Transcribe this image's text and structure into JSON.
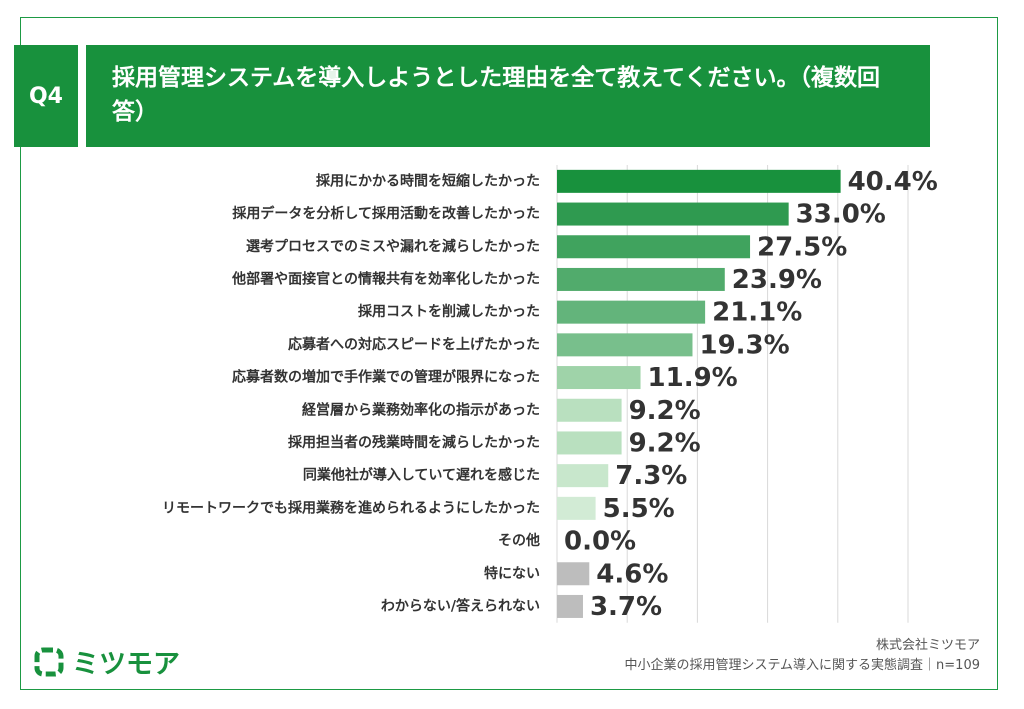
{
  "header": {
    "question": "Q4",
    "title": "採用管理システムを導入しようとした理由を全て教えてください。（複数回答）"
  },
  "chart_data": {
    "type": "barh",
    "categories": [
      "採用にかかる時間を短縮したかった",
      "採用データを分析して採用活動を改善したかった",
      "選考プロセスでのミスや漏れを減らしたかった",
      "他部署や面接官との情報共有を効率化したかった",
      "採用コストを削減したかった",
      "応募者への対応スピードを上げたかった",
      "応募者数の増加で手作業での管理が限界になった",
      "経営層から業務効率化の指示があった",
      "採用担当者の残業時間を減らしたかった",
      "同業他社が導入していて遅れを感じた",
      "リモートワークでも採用業務を進められるようにしたかった",
      "その他",
      "特にない",
      "わからない/答えられない"
    ],
    "values": [
      40.4,
      33.0,
      27.5,
      23.9,
      21.1,
      19.3,
      11.9,
      9.2,
      9.2,
      7.3,
      5.5,
      0.0,
      4.6,
      3.7
    ],
    "value_labels": [
      "40.4%",
      "33.0%",
      "27.5%",
      "23.9%",
      "21.1%",
      "19.3%",
      "11.9%",
      "9.2%",
      "9.2%",
      "7.3%",
      "5.5%",
      "0.0%",
      "4.6%",
      "3.7%"
    ],
    "colors": [
      "#18913d",
      "#2f9a50",
      "#40a35e",
      "#51ab6c",
      "#63b47b",
      "#78bf8c",
      "#9fd3a9",
      "#b9e0bf",
      "#b9e0bf",
      "#c8e7cc",
      "#d2ebd5",
      "#d2ebd5",
      "#bdbdbd",
      "#bdbdbd"
    ],
    "xlim": [
      0,
      50
    ],
    "xticks": [
      0,
      10,
      20,
      30,
      40,
      50
    ],
    "grid": true
  },
  "footer": {
    "logo": "ミツモア",
    "company": "株式会社ミツモア",
    "source": "中小企業の採用管理システム導入に関する実態調査｜n=109"
  }
}
